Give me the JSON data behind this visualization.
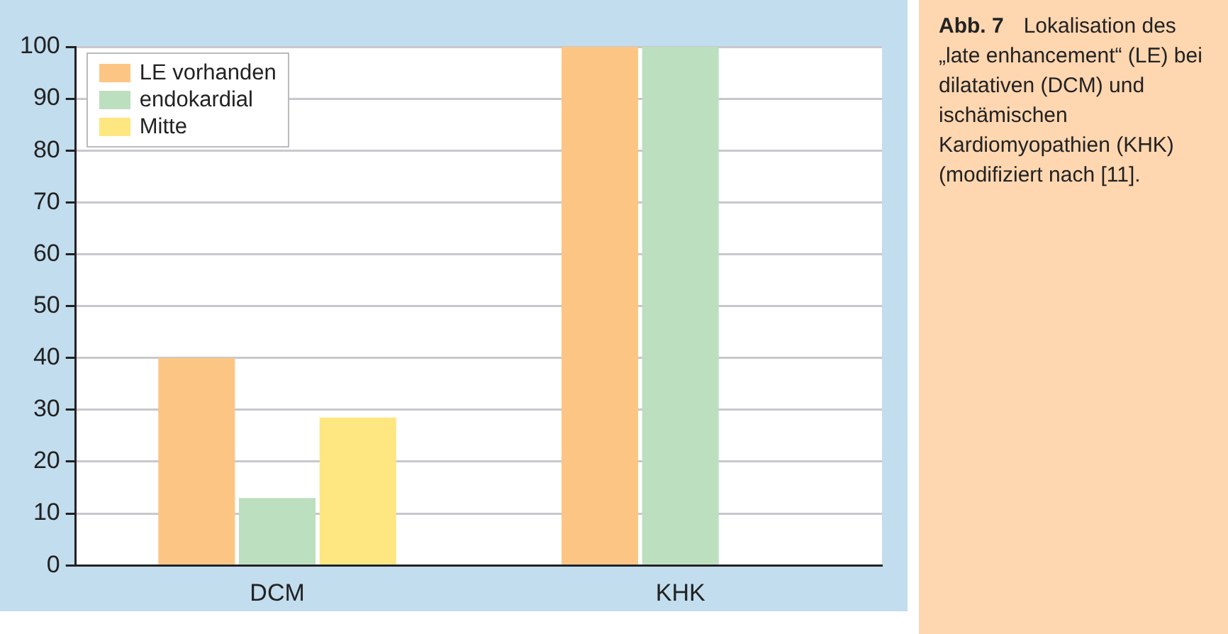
{
  "chart_data": {
    "type": "bar",
    "title": "Abb. 7",
    "annotations": [
      "Lokalisation des „late enhancement“ (LE) bei dilatativen (DCM) und ischämischen Kardiomyopathien (KHK) (modifiziert nach [11]."
    ],
    "categories": [
      "DCM",
      "KHK"
    ],
    "series": [
      {
        "name": "LE vorhanden",
        "color": "#fdc584",
        "values": [
          40,
          100
        ]
      },
      {
        "name": "endokardial",
        "color": "#bcdfbf",
        "values": [
          13,
          100
        ]
      },
      {
        "name": "Mitte",
        "color": "#fee680",
        "values": [
          28.5,
          null
        ]
      }
    ],
    "ylim": [
      0,
      100
    ],
    "yticks": [
      0,
      10,
      20,
      30,
      40,
      50,
      60,
      70,
      80,
      90,
      100
    ],
    "grid": "y",
    "legend": "top left"
  }
}
